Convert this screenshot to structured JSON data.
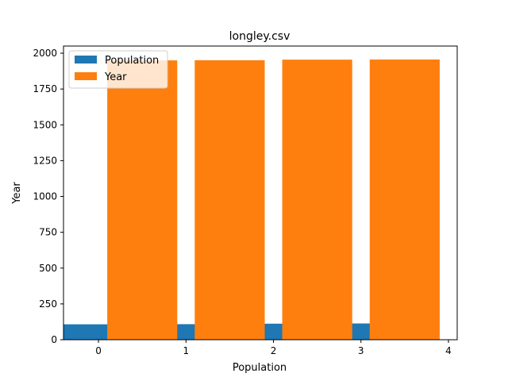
{
  "chart_data": {
    "type": "bar",
    "title": "longley.csv",
    "xlabel": "Population",
    "ylabel": "Year",
    "x_ticks": [
      "0",
      "1",
      "2",
      "3",
      "4"
    ],
    "y_ticks": [
      "0",
      "250",
      "500",
      "750",
      "1000",
      "1250",
      "1500",
      "1750",
      "2000"
    ],
    "xlim": [
      -0.4,
      4.1
    ],
    "ylim": [
      0,
      2050
    ],
    "grid": false,
    "legend_position": "top-left",
    "series": [
      {
        "name": "Population",
        "color": "#1f77b4",
        "x": [
          0,
          1,
          2,
          3
        ],
        "values": [
          107.6,
          108.6,
          112.0,
          113.5
        ]
      },
      {
        "name": "Year",
        "color": "#ff7f0e",
        "x": [
          0.5,
          1.5,
          2.5,
          3.5
        ],
        "values": [
          1950,
          1951,
          1955,
          1956
        ]
      }
    ]
  }
}
